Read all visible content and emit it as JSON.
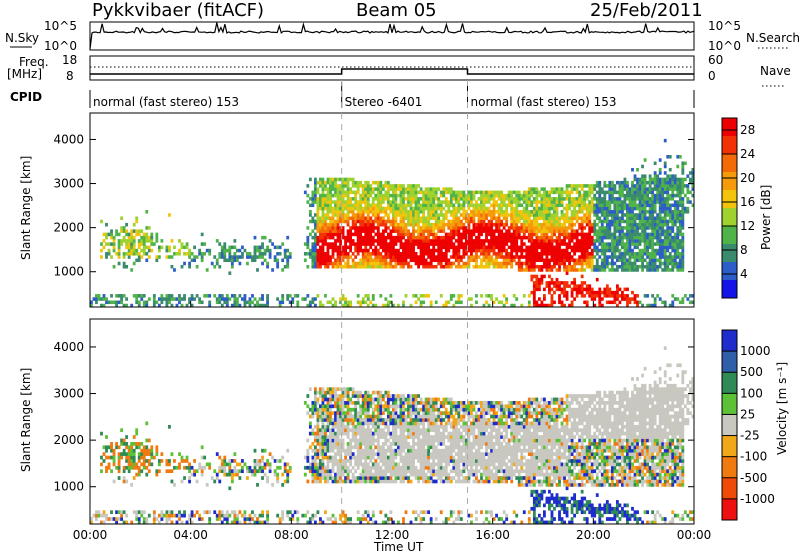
{
  "header": {
    "station": "Pykkvibaer (fitACF)",
    "beam": "Beam 05",
    "date": "25/Feb/2011"
  },
  "status_panels": {
    "nsky_label": "N.Sky",
    "nsky_ticks": [
      "10^5",
      "10^0"
    ],
    "nsearch_label": "N.Search",
    "nsearch_ticks": [
      "10^5",
      "10^0"
    ],
    "freq_label_1": "Freq.",
    "freq_label_2": "[MHz]",
    "freq_ticks": [
      "18",
      "8"
    ],
    "nave_label": "Nave",
    "nave_ticks": [
      "60",
      "0"
    ],
    "cpid_label": "CPID",
    "cpid_segments": [
      {
        "label": "normal (fast stereo) 153",
        "start_hour": 0,
        "end_hour": 10
      },
      {
        "label": "Stereo -6401",
        "start_hour": 10,
        "end_hour": 15
      },
      {
        "label": "normal (fast stereo) 153",
        "start_hour": 15,
        "end_hour": 24
      }
    ]
  },
  "chart_data": [
    {
      "type": "heatmap",
      "name": "power",
      "ylabel": "Slant Range [km]",
      "yticks": [
        "1000",
        "2000",
        "3000",
        "4000"
      ],
      "ylim": [
        200,
        4600
      ],
      "colorbar_label": "Power [dB]",
      "colorbar_ticks": [
        "4",
        "8",
        "12",
        "16",
        "20",
        "24",
        "28"
      ],
      "colorbar_range": [
        0,
        30
      ],
      "colors": [
        "#1414e6",
        "#2d5dc8",
        "#3a8a6e",
        "#4fb34a",
        "#9fd22e",
        "#f2c40c",
        "#f59a0a",
        "#f46a06",
        "#f23205",
        "#ee0000"
      ]
    },
    {
      "type": "heatmap",
      "name": "velocity",
      "ylabel": "Slant Range [km]",
      "yticks": [
        "1000",
        "2000",
        "3000",
        "4000"
      ],
      "ylim": [
        200,
        4600
      ],
      "colorbar_label": "Velocity [m s⁻¹]",
      "colorbar_ticks": [
        "1000",
        "500",
        "100",
        "25",
        "-25",
        "-100",
        "-500",
        "-1000"
      ],
      "colors": [
        "#1e2ccc",
        "#2f5fa8",
        "#2f8a55",
        "#5cc136",
        "#c8c8c0",
        "#f0a818",
        "#f07a10",
        "#f04a08",
        "#ee1010"
      ]
    }
  ],
  "time_axis": {
    "ticks": [
      "00:00",
      "04:00",
      "08:00",
      "12:00",
      "16:00",
      "20:00",
      "00:00"
    ],
    "label": "Time UT"
  }
}
